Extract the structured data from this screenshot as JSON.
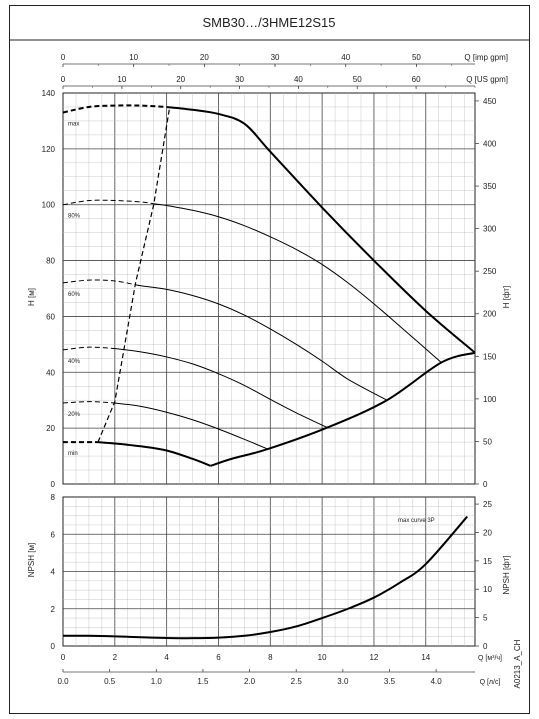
{
  "title": "SMB30…/3HME12S15",
  "doc_code": "A0213_A_CH",
  "colors": {
    "curve": "#000000",
    "grid": "#444444",
    "border": "#222222",
    "background": "#ffffff"
  },
  "axes": {
    "imp_gpm": {
      "label": "Q [imp gpm]",
      "ticks": [
        "0",
        "10",
        "20",
        "30",
        "40",
        "50"
      ]
    },
    "us_gpm": {
      "label": "Q [US gpm]",
      "ticks": [
        "0",
        "10",
        "20",
        "30",
        "40",
        "50",
        "60"
      ]
    },
    "h_m": {
      "label": "H [м]",
      "ticks": [
        "0",
        "20",
        "40",
        "60",
        "80",
        "100",
        "120",
        "140"
      ]
    },
    "h_ft": {
      "label": "H [фт]",
      "ticks": [
        "0",
        "50",
        "100",
        "150",
        "200",
        "250",
        "300",
        "350",
        "400",
        "450"
      ]
    },
    "npsh_m": {
      "label": "NPSH [м]",
      "ticks": [
        "0",
        "2",
        "4",
        "6",
        "8"
      ]
    },
    "npsh_ft": {
      "label": "NPSH [фт]",
      "ticks": [
        "0",
        "5",
        "10",
        "15",
        "20",
        "25"
      ]
    },
    "q_m3h": {
      "label": "Q [м³/ч]",
      "ticks": [
        "0",
        "2",
        "4",
        "6",
        "8",
        "10",
        "12",
        "14"
      ]
    },
    "q_ls": {
      "label": "Q [л/с]",
      "ticks": [
        "0.0",
        "0.5",
        "1.0",
        "1.5",
        "2.0",
        "2.5",
        "3.0",
        "3.5",
        "4.0"
      ]
    }
  },
  "chart_data": [
    {
      "type": "line",
      "x_unit": "м³/ч",
      "y_unit": "м",
      "xlim": [
        0,
        15.9
      ],
      "ylim": [
        0,
        140
      ],
      "grid": true,
      "series": [
        {
          "name": "max",
          "dashed_until_x": 4.0,
          "x": [
            0,
            1,
            2,
            3,
            4,
            5,
            6,
            7,
            8,
            10,
            12,
            14,
            15.9
          ],
          "y": [
            133,
            135,
            135.5,
            135.5,
            135,
            134,
            132.5,
            129,
            119,
            99,
            80,
            62,
            47
          ]
        },
        {
          "name": "80%",
          "dashed_until_x": 3.5,
          "x": [
            0,
            1,
            2,
            3,
            4,
            5,
            6,
            7,
            8,
            9,
            10,
            11,
            12,
            13,
            14.6
          ],
          "y": [
            100,
            101.5,
            101.5,
            101,
            99.7,
            98,
            95.7,
            92.5,
            88.5,
            84,
            78.6,
            72,
            64.5,
            56.5,
            43.5
          ]
        },
        {
          "name": "60%",
          "dashed_until_x": 2.8,
          "x": [
            0,
            1,
            2,
            3,
            4,
            5,
            6,
            7,
            8,
            9,
            10,
            11,
            12.5
          ],
          "y": [
            72,
            73,
            72.7,
            71,
            69.7,
            67.5,
            64.5,
            60.5,
            55.5,
            50,
            44,
            37.5,
            30
          ]
        },
        {
          "name": "40%",
          "dashed_until_x": 2.0,
          "x": [
            0,
            1,
            2,
            3,
            4,
            5,
            6,
            7,
            8,
            9,
            10.2
          ],
          "y": [
            48,
            49,
            48.5,
            47.3,
            45.5,
            43,
            39.5,
            35.3,
            30.3,
            25.5,
            20.2
          ]
        },
        {
          "name": "20%",
          "dashed_until_x": 2.0,
          "x": [
            0,
            1,
            2,
            3,
            4,
            5,
            6,
            7,
            7.9
          ],
          "y": [
            29,
            29.5,
            29,
            27.8,
            25.7,
            23,
            19.7,
            16,
            12.5
          ]
        },
        {
          "name": "min",
          "dashed_until_x": 1.35,
          "x": [
            0,
            1.35,
            2,
            3,
            4,
            5,
            5.7
          ],
          "y": [
            15,
            15,
            14.5,
            13.5,
            12,
            9,
            6.5
          ]
        }
      ],
      "boundaries": {
        "left_limit": {
          "dashed": true,
          "x": [
            1.35,
            2.0,
            2.8,
            3.5,
            4.1
          ],
          "y": [
            15,
            29.5,
            72,
            100,
            134
          ]
        },
        "right_limit": {
          "dashed": false,
          "x": [
            5.7,
            6.5,
            7.9,
            10.2,
            12.5,
            14.6,
            15.9
          ],
          "y": [
            6.5,
            9,
            12.5,
            20.2,
            30,
            43.5,
            47
          ]
        }
      },
      "labels": [
        "max",
        "80%",
        "60%",
        "40%",
        "20%",
        "min"
      ]
    },
    {
      "type": "line",
      "x_unit": "м³/ч",
      "y_unit": "м",
      "xlim": [
        0,
        15.9
      ],
      "ylim": [
        0,
        8
      ],
      "grid": true,
      "series": [
        {
          "name": "max curve 3P",
          "x": [
            0,
            1,
            2,
            3,
            4,
            5,
            6,
            7,
            8,
            9,
            10,
            11,
            12,
            13,
            14,
            15.6
          ],
          "y": [
            0.55,
            0.55,
            0.52,
            0.47,
            0.43,
            0.42,
            0.45,
            0.55,
            0.75,
            1.05,
            1.5,
            2.0,
            2.6,
            3.4,
            4.4,
            6.95
          ]
        }
      ],
      "annotation": "max curve 3P"
    }
  ]
}
